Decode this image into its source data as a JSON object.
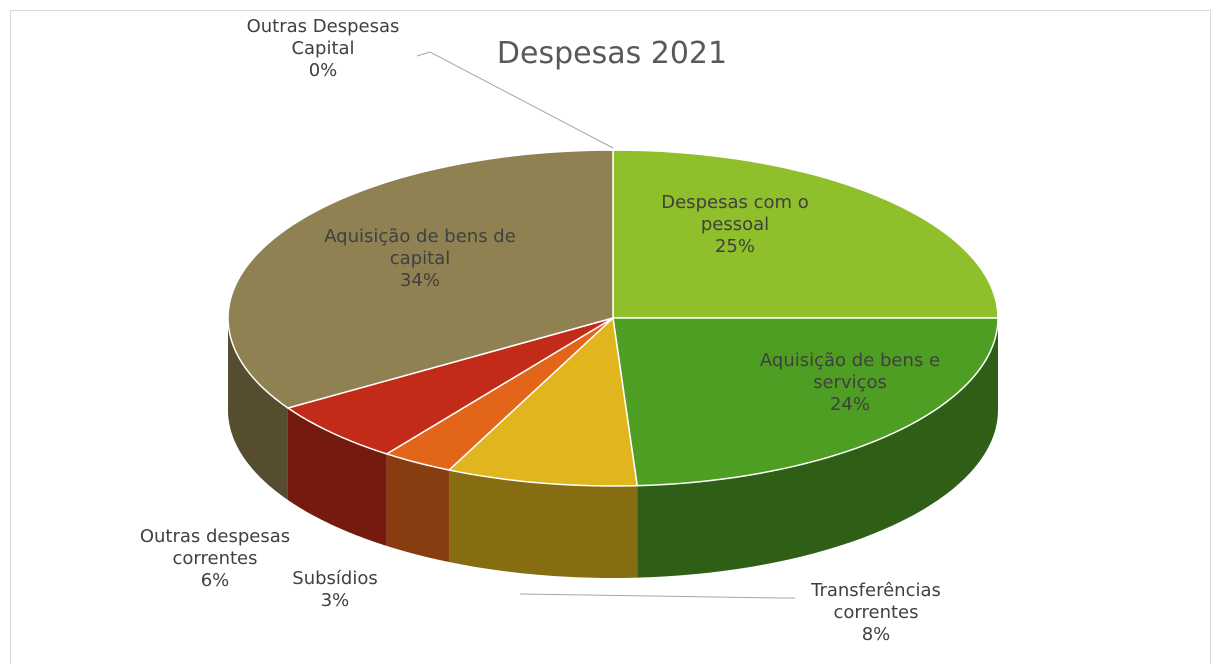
{
  "chart_data": {
    "type": "pie3d",
    "title": "Despesas 2021",
    "categories": [
      "Despesas com o pessoal",
      "Aquisição  de bens e serviços",
      "Transferências correntes",
      "Subsídios",
      "Outras despesas correntes",
      "Aquisição de bens de capital",
      "Outras Despesas Capital"
    ],
    "values": [
      25,
      24,
      8,
      3,
      6,
      34,
      0
    ],
    "value_labels": [
      "25%",
      "24%",
      "8%",
      "3%",
      "6%",
      "34%",
      "0%"
    ],
    "colors": [
      "#8fbf2a",
      "#4f9e24",
      "#e1b51e",
      "#e3651a",
      "#c12b18",
      "#8f8152",
      "#a08f5c"
    ]
  }
}
